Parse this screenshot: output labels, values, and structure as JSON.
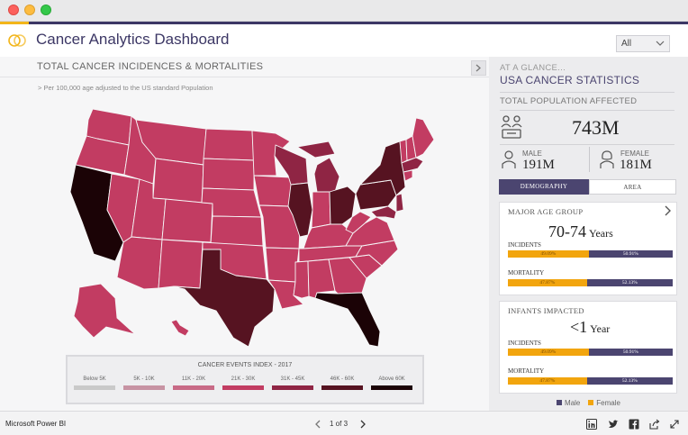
{
  "app": {
    "title": "Cancer Analytics Dashboard",
    "filter_value": "All",
    "brand": "Microsoft Power BI",
    "page_indicator": "1 of 3"
  },
  "colors": {
    "accent": "#4b4570",
    "highlight": "#f2b51a",
    "male": "#4b4570",
    "female": "#f2a50e"
  },
  "map": {
    "title": "TOTAL CANCER INCIDENCES & MORTALITIES",
    "subtitle": "> Per 100,000 age adjusted to the US standard Population",
    "legend_title": "CANCER EVENTS INDEX - 2017",
    "legend": [
      {
        "label": "Below 5K",
        "color": "#c9c9c9"
      },
      {
        "label": "5K - 10K",
        "color": "#c793a3"
      },
      {
        "label": "11K - 20K",
        "color": "#c86a86"
      },
      {
        "label": "21K - 30K",
        "color": "#c23c62"
      },
      {
        "label": "31K - 45K",
        "color": "#8f2544"
      },
      {
        "label": "46K - 60K",
        "color": "#561321"
      },
      {
        "label": "Above 60K",
        "color": "#1b0306"
      }
    ]
  },
  "glance": {
    "kicker": "AT A GLANCE...",
    "title": "USA CANCER STATISTICS",
    "population_label": "TOTAL POPULATION AFFECTED",
    "population": "743M",
    "male_label": "MALE",
    "male_value": "191M",
    "female_label": "FEMALE",
    "female_value": "181M"
  },
  "tabs": {
    "demography": "DEMOGRAPHY",
    "area": "AREA"
  },
  "age_group": {
    "title": "MAJOR AGE GROUP",
    "value": "70-74",
    "unit": "Years",
    "incidents_label": "INCIDENTS",
    "incidents_female": "49.09%",
    "incidents_male": "50.91%",
    "incidents_female_fraction": 0.4909,
    "mortality_label": "MORTALITY",
    "mortality_female": "47.87%",
    "mortality_male": "52.13%",
    "mortality_female_fraction": 0.4787
  },
  "infants": {
    "title": "INFANTS IMPACTED",
    "value": "<1",
    "unit": "Year",
    "incidents_label": "INCIDENTS",
    "incidents_female": "49.09%",
    "incidents_male": "50.91%",
    "incidents_female_fraction": 0.4909,
    "mortality_label": "MORTALITY",
    "mortality_female": "47.87%",
    "mortality_male": "52.13%",
    "mortality_female_fraction": 0.4787
  },
  "bar_legend": {
    "male": "Male",
    "female": "Female"
  }
}
